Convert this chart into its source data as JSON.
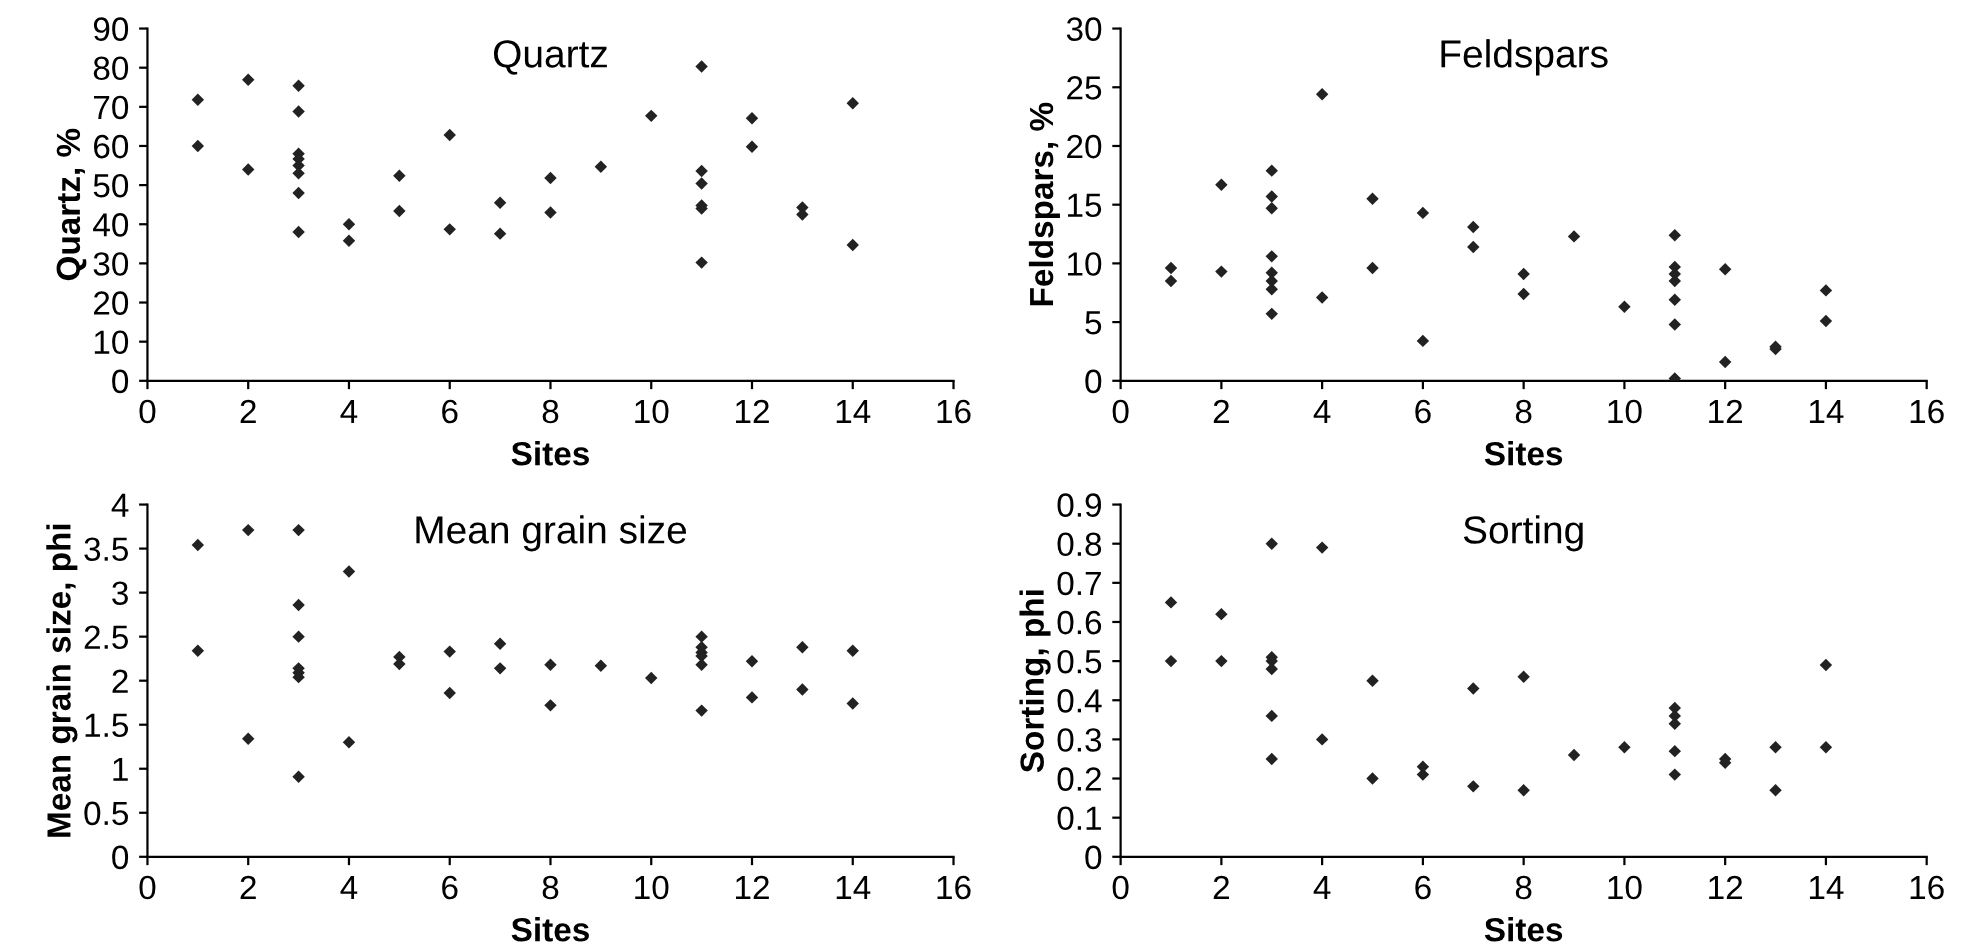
{
  "chart_data": [
    {
      "type": "scatter",
      "title": "Quartz",
      "xlabel": "Sites",
      "ylabel": "Quartz, %",
      "marker": "diamond",
      "grid": false,
      "xlim": [
        0,
        16
      ],
      "xticks": [
        0,
        2,
        4,
        6,
        8,
        10,
        12,
        14,
        16
      ],
      "ylim": [
        0,
        90
      ],
      "yticks": [
        0,
        10,
        20,
        30,
        40,
        50,
        60,
        70,
        80,
        90
      ],
      "series": [
        {
          "color": "#222222",
          "x": [
            1,
            1,
            2,
            2,
            3,
            3,
            3,
            3,
            3,
            3,
            3,
            3,
            4,
            4,
            5,
            5,
            6,
            6,
            7,
            7,
            8,
            8,
            9,
            10,
            11,
            11,
            11,
            11,
            11,
            11,
            12,
            12,
            13,
            13,
            14,
            14
          ],
          "values": [
            71.8,
            60,
            76.9,
            54,
            75.4,
            68.8,
            58,
            56.7,
            55,
            53,
            48,
            38,
            40,
            35.8,
            52.4,
            43.4,
            62.8,
            38.7,
            45.5,
            37.6,
            51.8,
            43,
            54.7,
            67.7,
            80.3,
            53.6,
            50.4,
            44.8,
            44,
            30.2,
            67.1,
            59.8,
            44.3,
            42.5,
            70.9,
            34.7
          ]
        }
      ]
    },
    {
      "type": "scatter",
      "title": "Feldspars",
      "xlabel": "Sites",
      "ylabel": "Feldspars, %",
      "marker": "diamond",
      "grid": false,
      "xlim": [
        0,
        16
      ],
      "xticks": [
        0,
        2,
        4,
        6,
        8,
        10,
        12,
        14,
        16
      ],
      "ylim": [
        0,
        30
      ],
      "yticks": [
        0,
        5,
        10,
        15,
        20,
        25,
        30
      ],
      "series": [
        {
          "color": "#222222",
          "x": [
            1,
            1,
            2,
            2,
            3,
            3,
            3,
            3,
            3,
            3,
            3,
            3,
            4,
            4,
            5,
            5,
            6,
            6,
            7,
            7,
            8,
            8,
            9,
            10,
            11,
            11,
            11,
            11,
            11,
            11,
            11,
            12,
            12,
            13,
            13,
            14,
            14
          ],
          "values": [
            9.6,
            8.5,
            16.7,
            9.3,
            17.9,
            15.7,
            14.7,
            10.6,
            9.2,
            8.5,
            7.8,
            5.7,
            24.4,
            7.1,
            15.5,
            9.6,
            14.3,
            3.4,
            13.1,
            11.4,
            9.1,
            7.4,
            12.3,
            6.3,
            12.4,
            9.7,
            9.1,
            8.5,
            6.9,
            4.8,
            0.2,
            9.5,
            1.6,
            2.9,
            2.7,
            7.7,
            5.1
          ]
        }
      ]
    },
    {
      "type": "scatter",
      "title": "Mean grain size",
      "xlabel": "Sites",
      "ylabel": "Mean grain size, phi",
      "marker": "diamond",
      "grid": false,
      "xlim": [
        0,
        16
      ],
      "xticks": [
        0,
        2,
        4,
        6,
        8,
        10,
        12,
        14,
        16
      ],
      "ylim": [
        0,
        4
      ],
      "yticks": [
        0,
        0.5,
        1,
        1.5,
        2,
        2.5,
        3,
        3.5,
        4
      ],
      "series": [
        {
          "color": "#222222",
          "x": [
            1,
            1,
            2,
            2,
            3,
            3,
            3,
            3,
            3,
            3,
            3,
            4,
            4,
            5,
            5,
            6,
            6,
            7,
            7,
            8,
            8,
            9,
            10,
            11,
            11,
            11,
            11,
            11,
            11,
            12,
            12,
            13,
            13,
            14,
            14
          ],
          "values": [
            3.54,
            2.34,
            3.71,
            1.34,
            3.71,
            2.86,
            2.5,
            2.14,
            2.09,
            2.04,
            0.91,
            3.24,
            1.3,
            2.27,
            2.19,
            2.33,
            1.86,
            2.42,
            2.14,
            2.18,
            1.72,
            2.17,
            2.03,
            2.5,
            2.38,
            2.32,
            2.28,
            2.18,
            1.66,
            2.22,
            1.81,
            2.38,
            1.9,
            2.34,
            1.74
          ]
        }
      ]
    },
    {
      "type": "scatter",
      "title": "Sorting",
      "xlabel": "Sites",
      "ylabel": "Sorting, phi",
      "marker": "diamond",
      "grid": false,
      "xlim": [
        0,
        16
      ],
      "xticks": [
        0,
        2,
        4,
        6,
        8,
        10,
        12,
        14,
        16
      ],
      "ylim": [
        0,
        0.9
      ],
      "yticks": [
        0,
        0.1,
        0.2,
        0.3,
        0.4,
        0.5,
        0.6,
        0.7,
        0.8,
        0.9
      ],
      "series": [
        {
          "color": "#222222",
          "x": [
            1,
            1,
            2,
            2,
            3,
            3,
            3,
            3,
            3,
            3,
            4,
            4,
            5,
            5,
            6,
            6,
            7,
            7,
            8,
            8,
            9,
            10,
            11,
            11,
            11,
            11,
            11,
            12,
            12,
            13,
            13,
            14,
            14
          ],
          "values": [
            0.65,
            0.5,
            0.62,
            0.5,
            0.8,
            0.51,
            0.5,
            0.48,
            0.36,
            0.25,
            0.79,
            0.3,
            0.45,
            0.2,
            0.23,
            0.21,
            0.43,
            0.18,
            0.46,
            0.17,
            0.26,
            0.28,
            0.38,
            0.36,
            0.34,
            0.27,
            0.21,
            0.25,
            0.24,
            0.28,
            0.17,
            0.49,
            0.28
          ]
        }
      ]
    }
  ]
}
